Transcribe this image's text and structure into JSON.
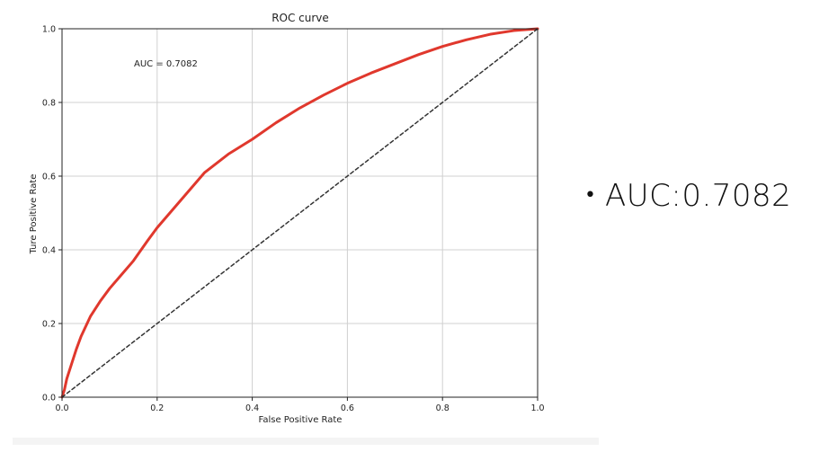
{
  "chart_data": {
    "type": "line",
    "title": "ROC curve",
    "xlabel": "False Positive Rate",
    "ylabel": "Ture Positive Rate",
    "xlim": [
      0.0,
      1.0
    ],
    "ylim": [
      0.0,
      1.0
    ],
    "xticks": [
      "0.0",
      "0.2",
      "0.4",
      "0.6",
      "0.8",
      "1.0"
    ],
    "yticks": [
      "0.0",
      "0.2",
      "0.4",
      "0.6",
      "0.8",
      "1.0"
    ],
    "grid": true,
    "annotation": "AUC = 0.7082",
    "series": [
      {
        "style": "solid",
        "color": "#e0382d",
        "x": [
          0.0,
          0.005,
          0.01,
          0.02,
          0.03,
          0.04,
          0.06,
          0.08,
          0.1,
          0.12,
          0.15,
          0.18,
          0.2,
          0.25,
          0.3,
          0.35,
          0.4,
          0.45,
          0.5,
          0.55,
          0.6,
          0.65,
          0.7,
          0.75,
          0.8,
          0.85,
          0.9,
          0.95,
          1.0
        ],
        "y": [
          0.0,
          0.02,
          0.05,
          0.09,
          0.13,
          0.165,
          0.22,
          0.26,
          0.295,
          0.325,
          0.37,
          0.425,
          0.46,
          0.535,
          0.61,
          0.66,
          0.7,
          0.745,
          0.785,
          0.82,
          0.852,
          0.88,
          0.905,
          0.93,
          0.952,
          0.97,
          0.985,
          0.995,
          1.0
        ]
      },
      {
        "style": "dashed",
        "color": "#333333",
        "x": [
          0.0,
          1.0
        ],
        "y": [
          0.0,
          1.0
        ]
      }
    ]
  },
  "bullet": {
    "text": "AUC:0.7082"
  }
}
